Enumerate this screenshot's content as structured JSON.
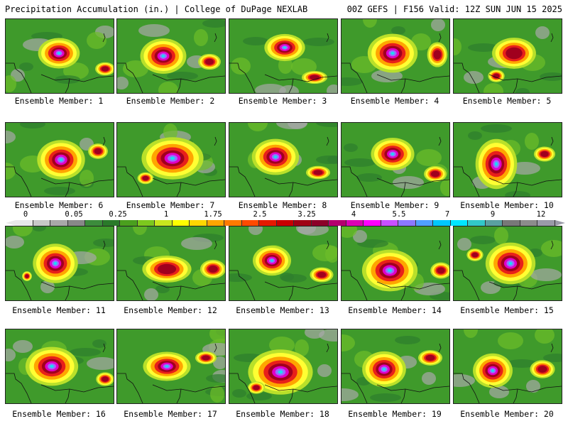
{
  "header": {
    "left_title": "Precipitation Accumulation (in.) | College of DuPage NEXLAB",
    "right_title": "00Z GEFS | F156 Valid: 12Z SUN JUN 15 2025"
  },
  "panels": [
    "Ensemble Member: 1",
    "Ensemble Member: 2",
    "Ensemble Member: 3",
    "Ensemble Member: 4",
    "Ensemble Member: 5",
    "Ensemble Member: 6",
    "Ensemble Member: 7",
    "Ensemble Member: 8",
    "Ensemble Member: 9",
    "Ensemble Member: 10",
    "Ensemble Member: 11",
    "Ensemble Member: 12",
    "Ensemble Member: 13",
    "Ensemble Member: 14",
    "Ensemble Member: 15",
    "Ensemble Member: 16",
    "Ensemble Member: 17",
    "Ensemble Member: 18",
    "Ensemble Member: 19",
    "Ensemble Member: 20"
  ],
  "colorbar": {
    "labels": [
      "0",
      "0.05",
      "0.25",
      "1",
      "1.75",
      "2.5",
      "3.25",
      "4",
      "5.5",
      "7",
      "9",
      "12"
    ],
    "colors": [
      "#e8e8e8",
      "#c8c8c8",
      "#a8a8a8",
      "#888888",
      "#3c8c3c",
      "#2a7a2a",
      "#4aa01e",
      "#7cc81e",
      "#c8e61e",
      "#ffff00",
      "#ffd700",
      "#ffa500",
      "#ff7a00",
      "#ff4a00",
      "#e61a00",
      "#c80000",
      "#a00014",
      "#8c0028",
      "#b4006e",
      "#dc00b4",
      "#ff00ff",
      "#c850ff",
      "#8c78ff",
      "#50a0ff",
      "#00c8ff",
      "#00e6ff",
      "#32c8c8",
      "#5aa0a0",
      "#787878",
      "#8c8c8c",
      "#9a9aa8"
    ]
  },
  "map_colors": {
    "green_dark": "#2d7d2d",
    "green": "#3f9a2b",
    "green_light": "#6dbd2a",
    "yellow_green": "#b9e02a",
    "yellow": "#ffff33",
    "orange": "#ffa500",
    "red": "#e8201a",
    "dark_red": "#a0001e",
    "magenta": "#e000c8",
    "purple": "#9a6cff",
    "cyan": "#20d8f0",
    "gray": "#a8a8a8"
  }
}
